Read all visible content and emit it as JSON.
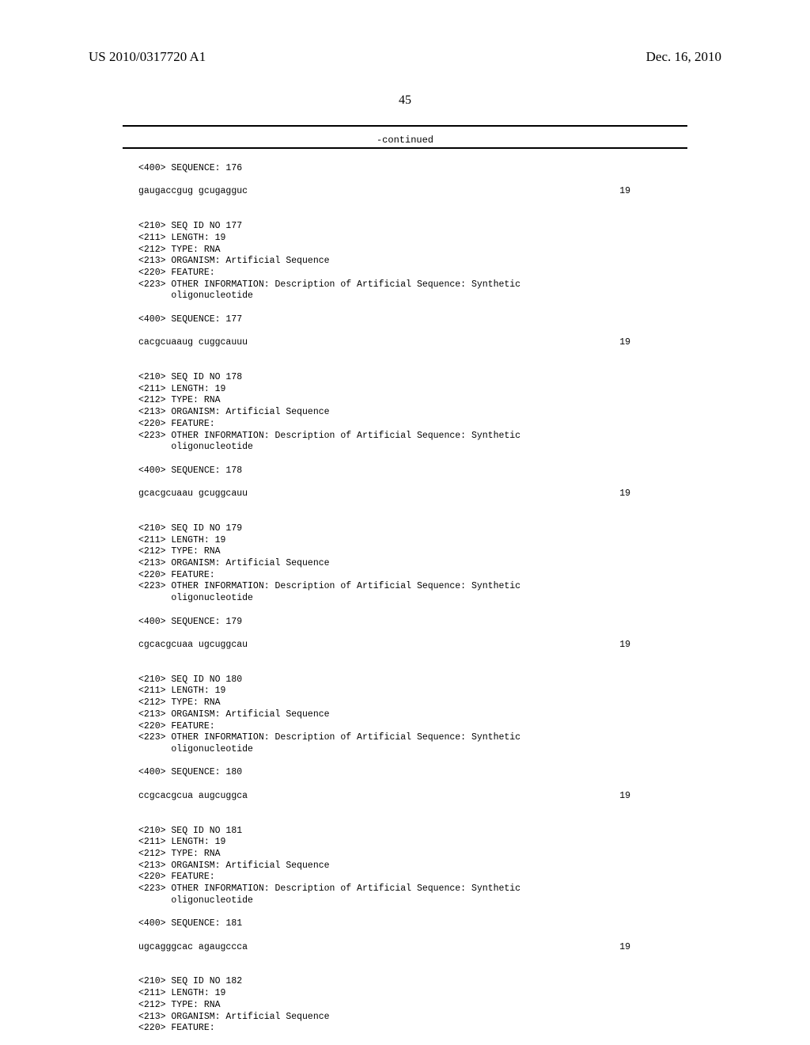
{
  "header": {
    "pub_number": "US 2010/0317720 A1",
    "pub_date": "Dec. 16, 2010",
    "page_number": "45",
    "continued": "-continued"
  },
  "entries": [
    {
      "pre_lines": [
        "<400> SEQUENCE: 176"
      ],
      "sequence": "gaugaccgug gcugagguc",
      "length": "19"
    },
    {
      "pre_lines": [
        "<210> SEQ ID NO 177",
        "<211> LENGTH: 19",
        "<212> TYPE: RNA",
        "<213> ORGANISM: Artificial Sequence",
        "<220> FEATURE:",
        "<223> OTHER INFORMATION: Description of Artificial Sequence: Synthetic",
        "      oligonucleotide",
        "",
        "<400> SEQUENCE: 177"
      ],
      "sequence": "cacgcuaaug cuggcauuu",
      "length": "19"
    },
    {
      "pre_lines": [
        "<210> SEQ ID NO 178",
        "<211> LENGTH: 19",
        "<212> TYPE: RNA",
        "<213> ORGANISM: Artificial Sequence",
        "<220> FEATURE:",
        "<223> OTHER INFORMATION: Description of Artificial Sequence: Synthetic",
        "      oligonucleotide",
        "",
        "<400> SEQUENCE: 178"
      ],
      "sequence": "gcacgcuaau gcuggcauu",
      "length": "19"
    },
    {
      "pre_lines": [
        "<210> SEQ ID NO 179",
        "<211> LENGTH: 19",
        "<212> TYPE: RNA",
        "<213> ORGANISM: Artificial Sequence",
        "<220> FEATURE:",
        "<223> OTHER INFORMATION: Description of Artificial Sequence: Synthetic",
        "      oligonucleotide",
        "",
        "<400> SEQUENCE: 179"
      ],
      "sequence": "cgcacgcuaa ugcuggcau",
      "length": "19"
    },
    {
      "pre_lines": [
        "<210> SEQ ID NO 180",
        "<211> LENGTH: 19",
        "<212> TYPE: RNA",
        "<213> ORGANISM: Artificial Sequence",
        "<220> FEATURE:",
        "<223> OTHER INFORMATION: Description of Artificial Sequence: Synthetic",
        "      oligonucleotide",
        "",
        "<400> SEQUENCE: 180"
      ],
      "sequence": "ccgcacgcua augcuggca",
      "length": "19"
    },
    {
      "pre_lines": [
        "<210> SEQ ID NO 181",
        "<211> LENGTH: 19",
        "<212> TYPE: RNA",
        "<213> ORGANISM: Artificial Sequence",
        "<220> FEATURE:",
        "<223> OTHER INFORMATION: Description of Artificial Sequence: Synthetic",
        "      oligonucleotide",
        "",
        "<400> SEQUENCE: 181"
      ],
      "sequence": "ugcagggcac agaugccca",
      "length": "19"
    },
    {
      "pre_lines": [
        "<210> SEQ ID NO 182",
        "<211> LENGTH: 19",
        "<212> TYPE: RNA",
        "<213> ORGANISM: Artificial Sequence",
        "<220> FEATURE:"
      ],
      "sequence": null,
      "length": null
    }
  ]
}
